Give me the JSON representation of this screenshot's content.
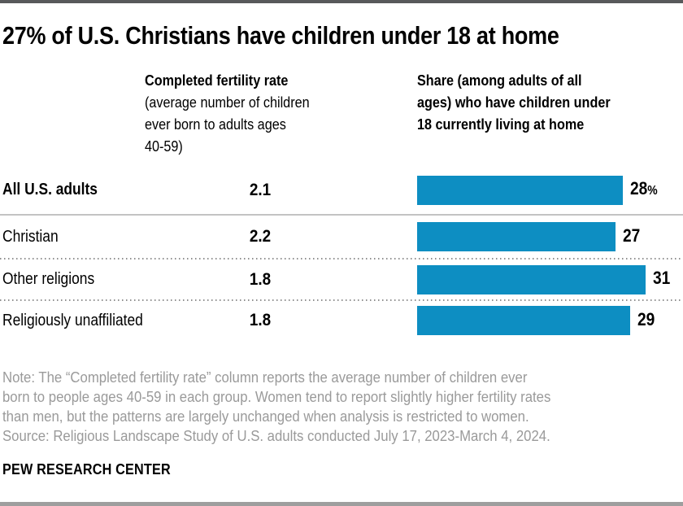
{
  "chart_data": {
    "type": "bar",
    "orientation": "horizontal",
    "title": "27% of U.S. Christians have children under 18 at home",
    "categories": [
      "All U.S. adults",
      "Christian",
      "Other religions",
      "Religiously unaffiliated"
    ],
    "series": [
      {
        "name": "Completed fertility rate (average number of children ever born to adults ages 40-59)",
        "values": [
          2.1,
          2.2,
          1.8,
          1.8
        ]
      },
      {
        "name": "Share (among adults of all ages) who have children under 18 currently living at home",
        "values": [
          28,
          27,
          31,
          29
        ]
      }
    ],
    "value_display": {
      "fertility": [
        "2.1",
        "2.2",
        "1.8",
        "1.8"
      ],
      "share": [
        "28",
        "27",
        "31",
        "29"
      ],
      "share_suffix": [
        "%",
        "",
        "",
        ""
      ]
    },
    "bar_color": "#0d8ec2",
    "xlim": [
      0,
      31
    ],
    "grid": false,
    "legend": "none"
  },
  "header": {
    "fertility_lines": [
      "Completed fertility rate",
      "(average number of children",
      "ever born to adults ages",
      "40-59)"
    ],
    "share_lines": [
      "Share (among adults of all",
      "ages) who have children under",
      "18 currently living at home"
    ]
  },
  "note_lines": [
    "Note: The “Completed fertility rate” column reports the average number of children ever",
    "born to people ages 40-59 in each group. Women tend to report slightly higher fertility rates",
    "than men, but the patterns are largely unchanged when analysis is restricted to women.",
    "Source: Religious Landscape Study of U.S. adults conducted July 17, 2023-March 4, 2024."
  ],
  "brand": "PEW RESEARCH CENTER"
}
